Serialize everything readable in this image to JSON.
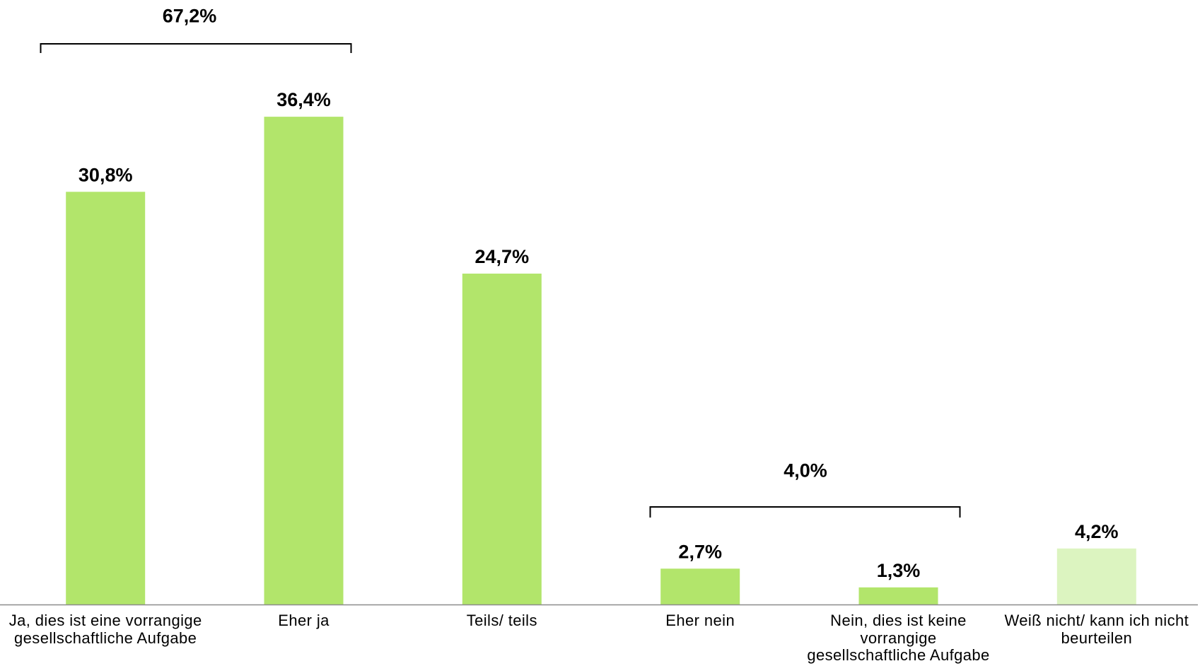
{
  "chart_data": {
    "type": "bar",
    "categories": [
      "Ja, dies ist eine vorrangige\ngesellschaftliche Aufgabe",
      "Eher ja",
      "Teils/ teils",
      "Eher nein",
      "Nein, dies ist keine\nvorrangige\ngesellschaftliche Aufgabe",
      "Weiß nicht/ kann ich nicht\nbeurteilen"
    ],
    "values": [
      30.8,
      36.4,
      24.7,
      2.7,
      1.3,
      4.2
    ],
    "value_labels": [
      "30,8%",
      "36,4%",
      "24,7%",
      "2,7%",
      "1,3%",
      "4,2%"
    ],
    "bar_colors": [
      "#b2e56b",
      "#b2e56b",
      "#b2e56b",
      "#b2e56b",
      "#b2e56b",
      "#dcf4c0"
    ],
    "brackets": [
      {
        "label": "67,2%",
        "value": 67.2,
        "spans_categories": [
          0,
          1
        ]
      },
      {
        "label": "4,0%",
        "value": 4.0,
        "spans_categories": [
          3,
          4
        ]
      }
    ],
    "ylim": [
      0,
      45
    ],
    "grid": false
  }
}
